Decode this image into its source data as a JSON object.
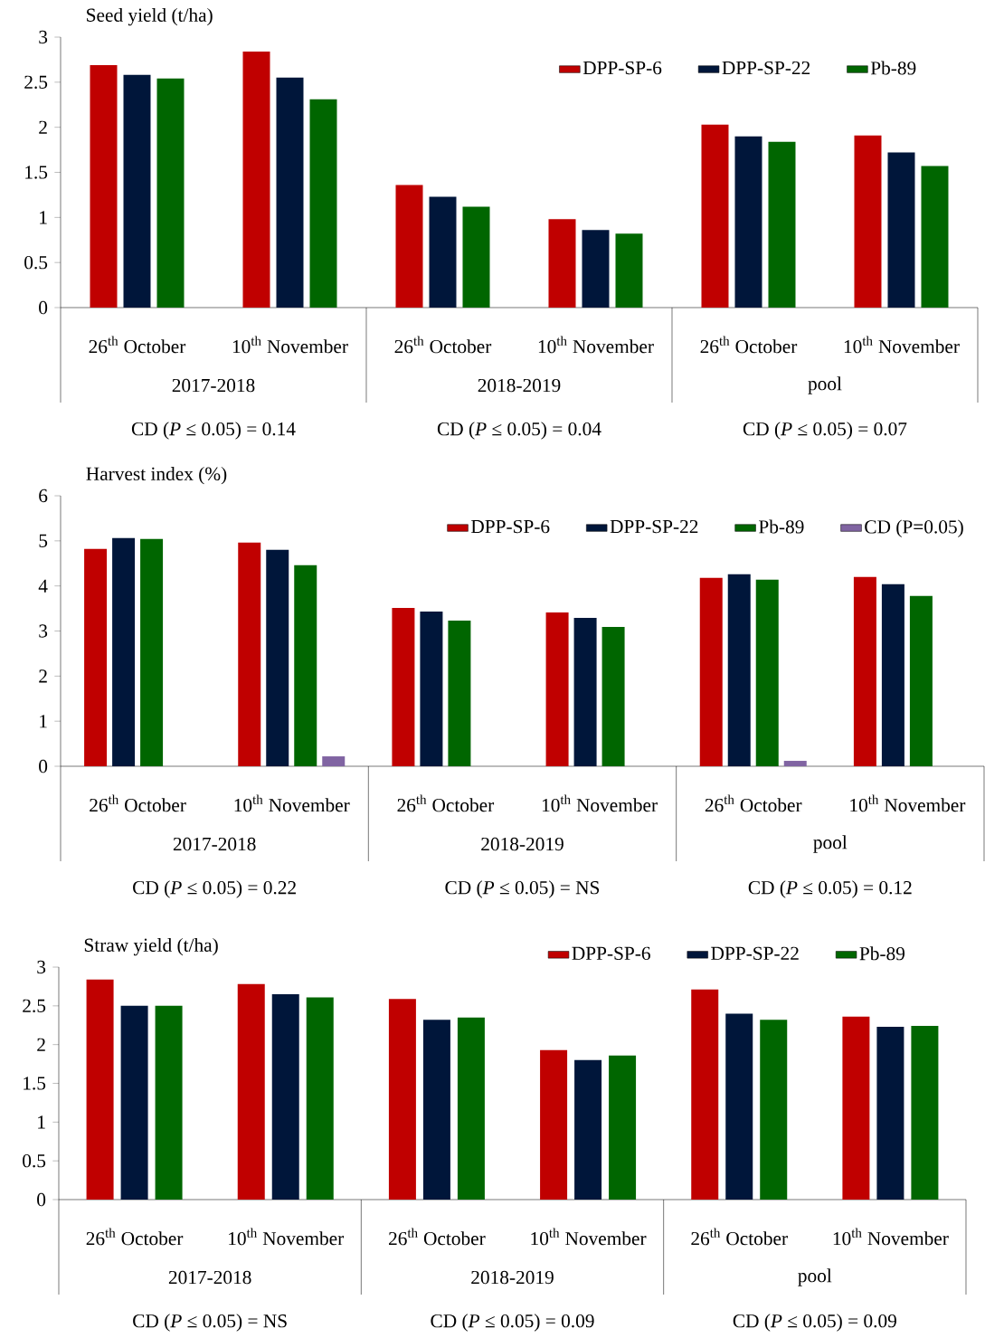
{
  "chart_data": [
    {
      "type": "bar",
      "title": "Seed yield (t/ha)",
      "categories": [
        "26$^{th}$ October",
        "10$^{th}$ November",
        "26$^{th}$ October",
        "10$^{th}$ November",
        "26$^{th}$ October",
        "10$^{th}$ November"
      ],
      "series": [
        {
          "name": "DPP-SP-6",
          "color": "#c00000",
          "values": [
            2.69,
            2.84,
            1.36,
            0.98,
            2.03,
            1.91
          ]
        },
        {
          "name": "DPP-SP-22",
          "color": "#00163a",
          "values": [
            2.58,
            2.55,
            1.23,
            0.86,
            1.9,
            1.72
          ]
        },
        {
          "name": "Pb-89",
          "color": "#006600",
          "values": [
            2.54,
            2.31,
            1.12,
            0.82,
            1.84,
            1.57
          ]
        }
      ],
      "ylim": [
        0,
        3
      ],
      "yticks": [
        0,
        0.5,
        1,
        1.5,
        2,
        2.5,
        3
      ],
      "legend": "top right",
      "annotations": [
        "2017-2018",
        "2018-2019",
        "pool",
        "CD (*P* ≤ 0.05) = 0.14",
        "CD (*P* ≤ 0.05) = 0.04",
        "CD (*P* ≤ 0.05) = 0.07"
      ]
    },
    {
      "type": "bar",
      "title": "Harvest index (%)",
      "categories": [
        "26$^{th}$ October",
        "10$^{th}$ November",
        "26$^{th}$ October",
        "10$^{th}$ November",
        "26$^{th}$ October",
        "10$^{th}$ November"
      ],
      "series": [
        {
          "name": "DPP-SP-6",
          "color": "#c00000",
          "values": [
            4.82,
            4.96,
            3.51,
            3.41,
            4.18,
            4.2
          ]
        },
        {
          "name": "DPP-SP-22",
          "color": "#00163a",
          "values": [
            5.06,
            4.8,
            3.43,
            3.29,
            4.26,
            4.04
          ]
        },
        {
          "name": "Pb-89",
          "color": "#006600",
          "values": [
            5.04,
            4.46,
            3.23,
            3.09,
            4.14,
            3.78
          ]
        },
        {
          "name": "CD (P=0.05)",
          "color": "#8064a2",
          "values": [
            null,
            0.22,
            null,
            null,
            0.12,
            null
          ]
        }
      ],
      "ylim": [
        0,
        6
      ],
      "yticks": [
        0,
        1,
        2,
        3,
        4,
        5,
        6
      ],
      "legend": "top right",
      "annotations": [
        "2017-2018",
        "2018-2019",
        "pool",
        "CD (*P* ≤ 0.05) = 0.22",
        "CD (*P* ≤ 0.05) = NS",
        "CD (*P* ≤ 0.05) = 0.12"
      ]
    },
    {
      "type": "bar",
      "title": "Straw yield (t/ha)",
      "categories": [
        "26$^{th}$ October",
        "10$^{th}$ November",
        "26$^{th}$ October",
        "10$^{th}$ November",
        "26$^{th}$ October",
        "10$^{th}$ November"
      ],
      "series": [
        {
          "name": "DPP-SP-6",
          "color": "#c00000",
          "values": [
            2.84,
            2.78,
            2.59,
            1.93,
            2.71,
            2.36
          ]
        },
        {
          "name": "DPP-SP-22",
          "color": "#00163a",
          "values": [
            2.5,
            2.65,
            2.32,
            1.8,
            2.4,
            2.23
          ]
        },
        {
          "name": "Pb-89",
          "color": "#006600",
          "values": [
            2.5,
            2.61,
            2.35,
            1.86,
            2.32,
            2.24
          ]
        }
      ],
      "ylim": [
        0,
        3
      ],
      "yticks": [
        0,
        0.5,
        1,
        1.5,
        2,
        2.5,
        3
      ],
      "legend": "top right",
      "annotations": [
        "2017-2018",
        "2018-2019",
        "pool",
        "CD (*P* ≤ 0.05) = NS",
        "CD (*P* ≤ 0.05) = 0.09",
        "CD (*P* ≤ 0.05) = 0.09"
      ]
    }
  ]
}
